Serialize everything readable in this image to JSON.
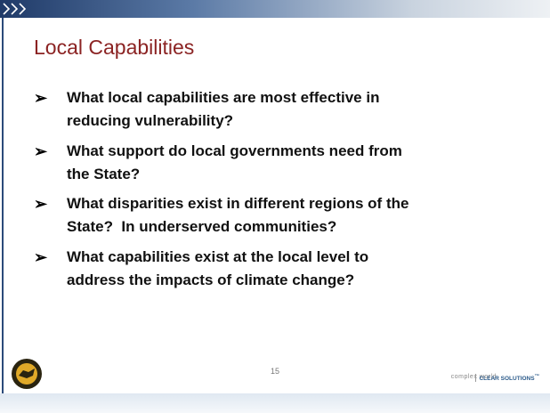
{
  "slide": {
    "title": "Local Capabilities",
    "bullets": [
      {
        "lines": [
          "What local capabilities are most effective in",
          "reducing vulnerability?"
        ]
      },
      {
        "lines": [
          "What support do local governments need from",
          "the State?"
        ]
      },
      {
        "lines": [
          "What disparities exist in different regions of the",
          "State?  In underserved communities?"
        ]
      },
      {
        "lines": [
          "What capabilities exist at the local level to",
          "address the impacts of climate change?"
        ]
      }
    ],
    "page_number": "15",
    "footer": {
      "tagline": "complex world",
      "brand": "CLEAR SOLUTIONS",
      "mark": "™"
    }
  }
}
